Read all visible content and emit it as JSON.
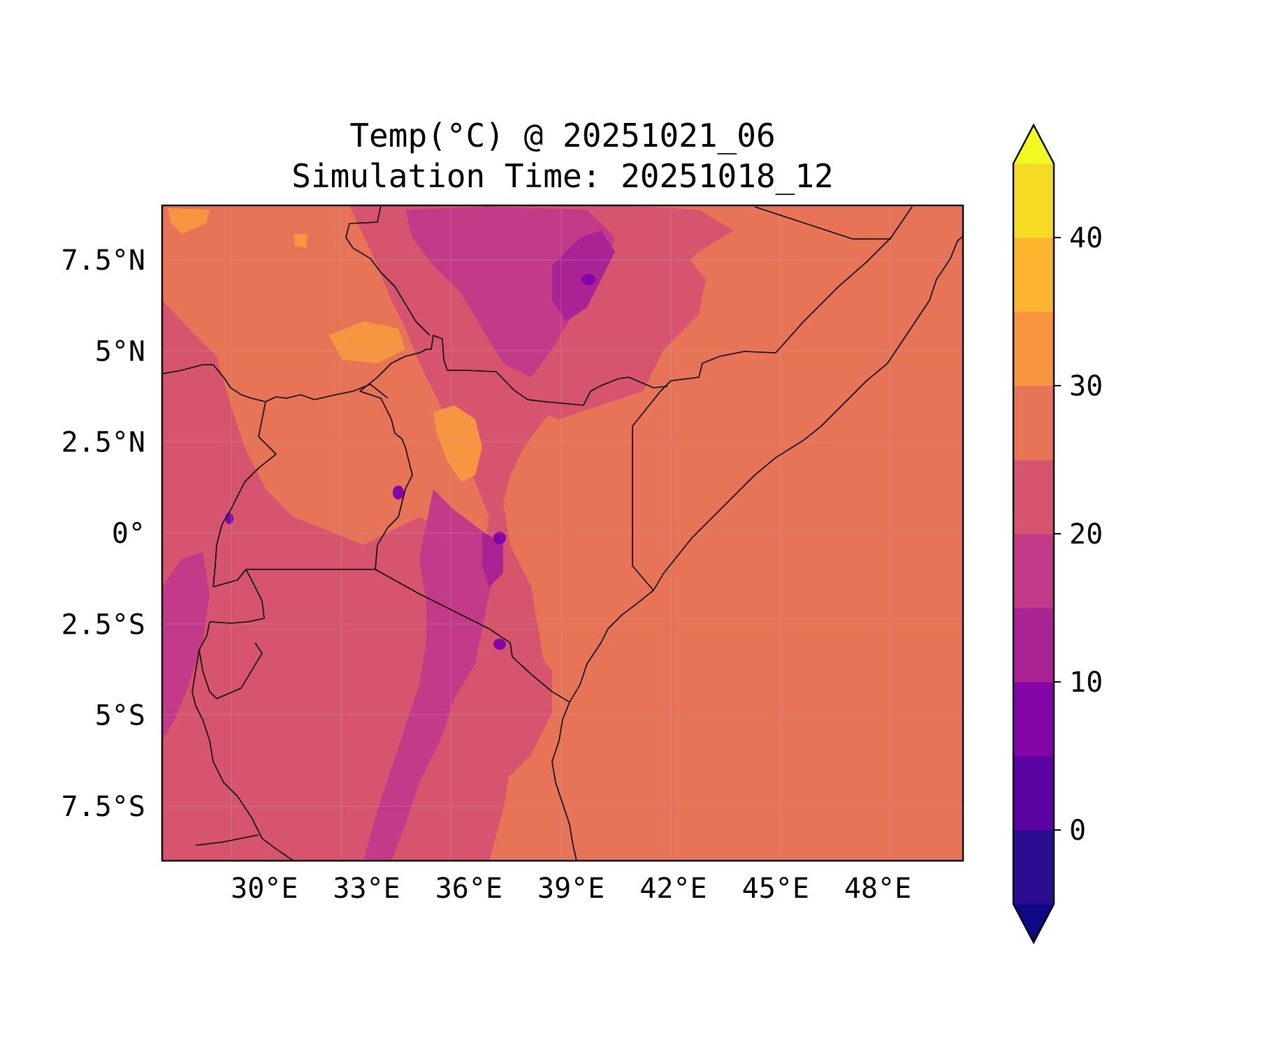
{
  "title": {
    "line1": "Temp(°C) @ 20251021_06",
    "line2": "Simulation Time: 20251018_12"
  },
  "map": {
    "lon_range": [
      27.0,
      50.5
    ],
    "lat_range": [
      -9.0,
      9.0
    ],
    "background_color": "#e87458",
    "x_ticks": [
      {
        "value": 30,
        "label": "30°E"
      },
      {
        "value": 33,
        "label": "33°E"
      },
      {
        "value": 36,
        "label": "36°E"
      },
      {
        "value": 39,
        "label": "39°E"
      },
      {
        "value": 42,
        "label": "42°E"
      },
      {
        "value": 45,
        "label": "45°E"
      },
      {
        "value": 48,
        "label": "48°E"
      }
    ],
    "y_ticks": [
      {
        "value": 7.5,
        "label": "7.5°N"
      },
      {
        "value": 5,
        "label": "5°N"
      },
      {
        "value": 2.5,
        "label": "2.5°N"
      },
      {
        "value": 0,
        "label": "0°"
      },
      {
        "value": -2.5,
        "label": "2.5°S"
      },
      {
        "value": -5,
        "label": "5°S"
      },
      {
        "value": -7.5,
        "label": "7.5°S"
      }
    ],
    "gridlines": true
  },
  "colorbar": {
    "levels": [
      -5,
      0,
      5,
      10,
      15,
      20,
      25,
      30,
      35,
      40,
      45
    ],
    "colors": [
      "#2a0d90",
      "#5b02a3",
      "#8405a7",
      "#aa2395",
      "#c33a89",
      "#d6546e",
      "#e87458",
      "#f89540",
      "#fdb42f",
      "#f5db24"
    ],
    "under_color": "#0d0887",
    "over_color": "#f0f921",
    "extend": "both",
    "ticks": [
      {
        "value": 0,
        "label": "0"
      },
      {
        "value": 10,
        "label": "10"
      },
      {
        "value": 20,
        "label": "20"
      },
      {
        "value": 30,
        "label": "30"
      },
      {
        "value": 40,
        "label": "40"
      }
    ]
  }
}
